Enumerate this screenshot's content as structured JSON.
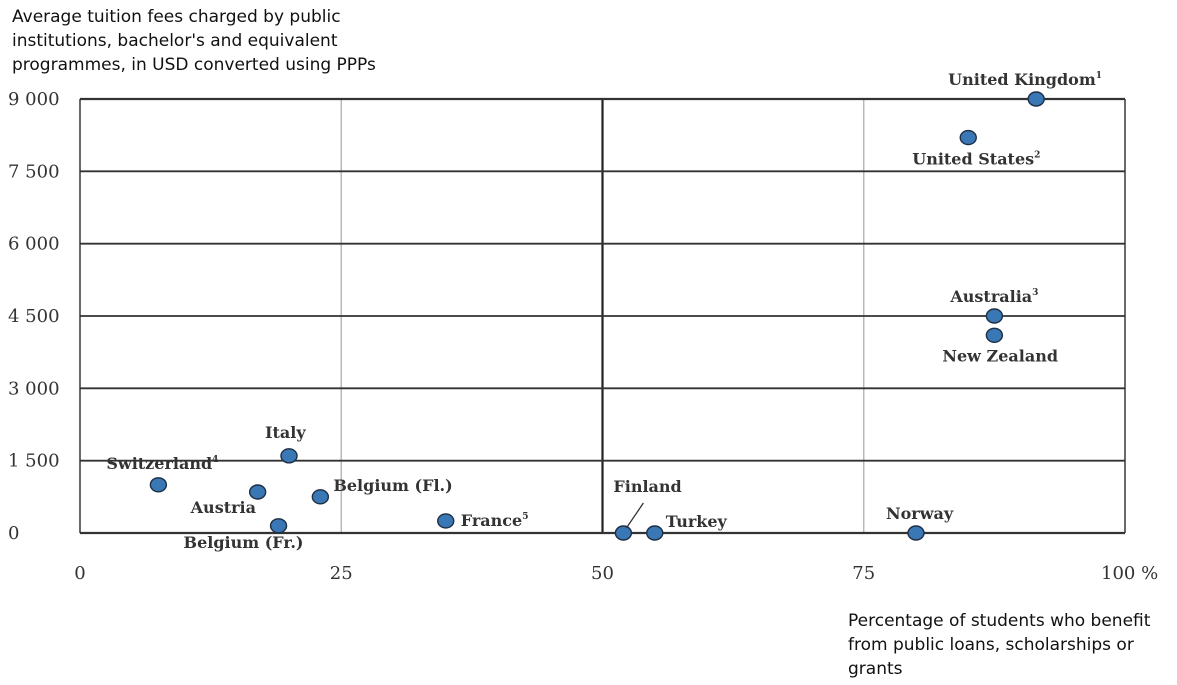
{
  "chart_data": {
    "type": "scatter",
    "title": "Average tuition fees charged by public institutions, bachelor's and equivalent programmes, in USD converted using PPPs",
    "xlabel": "Percentage of students who benefit from public loans, scholarships or grants",
    "ylabel": "",
    "xlim": [
      0,
      100
    ],
    "ylim": [
      0,
      9000
    ],
    "xticks": [
      {
        "value": 0,
        "label": "0"
      },
      {
        "value": 25,
        "label": "25"
      },
      {
        "value": 50,
        "label": "50"
      },
      {
        "value": 75,
        "label": "75"
      },
      {
        "value": 100,
        "label": "100 %"
      }
    ],
    "yticks": [
      {
        "value": 0,
        "label": "0"
      },
      {
        "value": 1500,
        "label": "1 500"
      },
      {
        "value": 3000,
        "label": "3 000"
      },
      {
        "value": 4500,
        "label": "4 500"
      },
      {
        "value": 6000,
        "label": "6 000"
      },
      {
        "value": 7500,
        "label": "7 500"
      },
      {
        "value": 9000,
        "label": "9 000"
      }
    ],
    "grid": true,
    "point_color": "#3a78b5",
    "points": [
      {
        "name": "United Kingdom",
        "note": "1",
        "x": 91.5,
        "y": 9000
      },
      {
        "name": "United States",
        "note": "2",
        "x": 85,
        "y": 8200
      },
      {
        "name": "Australia",
        "note": "3",
        "x": 87.5,
        "y": 4500
      },
      {
        "name": "New Zealand",
        "note": "",
        "x": 87.5,
        "y": 4100
      },
      {
        "name": "Italy",
        "note": "",
        "x": 20,
        "y": 1600
      },
      {
        "name": "Switzerland",
        "note": "4",
        "x": 7.5,
        "y": 1000
      },
      {
        "name": "Austria",
        "note": "",
        "x": 17,
        "y": 850
      },
      {
        "name": "Belgium (Fl.)",
        "note": "",
        "x": 23,
        "y": 750
      },
      {
        "name": "Belgium (Fr.)",
        "note": "",
        "x": 19,
        "y": 150
      },
      {
        "name": "France",
        "note": "5",
        "x": 35,
        "y": 250
      },
      {
        "name": "Finland",
        "note": "",
        "x": 52,
        "y": 0
      },
      {
        "name": "Turkey",
        "note": "",
        "x": 55,
        "y": 0
      },
      {
        "name": "Norway",
        "note": "",
        "x": 80,
        "y": 0
      }
    ]
  }
}
